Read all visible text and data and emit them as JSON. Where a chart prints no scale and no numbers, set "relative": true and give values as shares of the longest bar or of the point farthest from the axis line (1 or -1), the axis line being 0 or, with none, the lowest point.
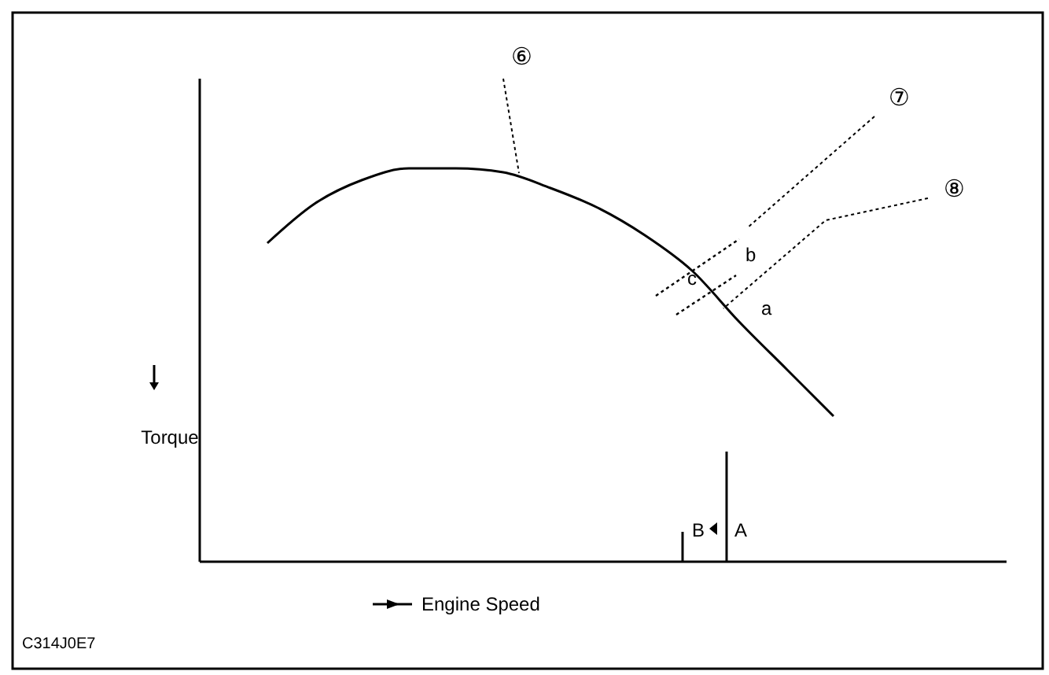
{
  "chart_data": {
    "type": "line",
    "relative": true,
    "categories": [
      null,
      null,
      null,
      null,
      null,
      null,
      null,
      null,
      null,
      null,
      null,
      null,
      null
    ],
    "series": [
      {
        "color": "#000000",
        "values": [
          0.81,
          0.91,
          0.97,
          1,
          1,
          0.99,
          0.95,
          0.9,
          0.83,
          0.74,
          0.61,
          0.49,
          0.37
        ]
      }
    ],
    "xlabel": "Engine Speed",
    "ylabel": "Torque",
    "marker": "none",
    "line_style": "solid",
    "annotations": [
      "⑥",
      "⑦",
      "⑧",
      "a",
      "b",
      "c",
      "B",
      "A",
      "C314J0E7"
    ]
  }
}
